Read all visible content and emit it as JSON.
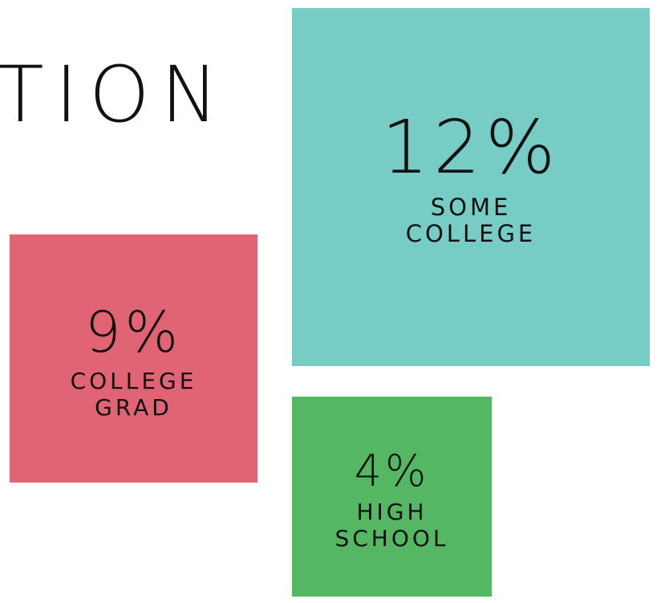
{
  "chart_data": {
    "type": "square",
    "title": "TION",
    "categories": [
      "SOME COLLEGE",
      "COLLEGE GRAD",
      "HIGH SCHOOL"
    ],
    "values": [
      12,
      9,
      4
    ],
    "value_labels": [
      "12%",
      "9%",
      "4%"
    ],
    "colors": [
      "#77cdc5",
      "#e06474",
      "#55b663"
    ]
  }
}
